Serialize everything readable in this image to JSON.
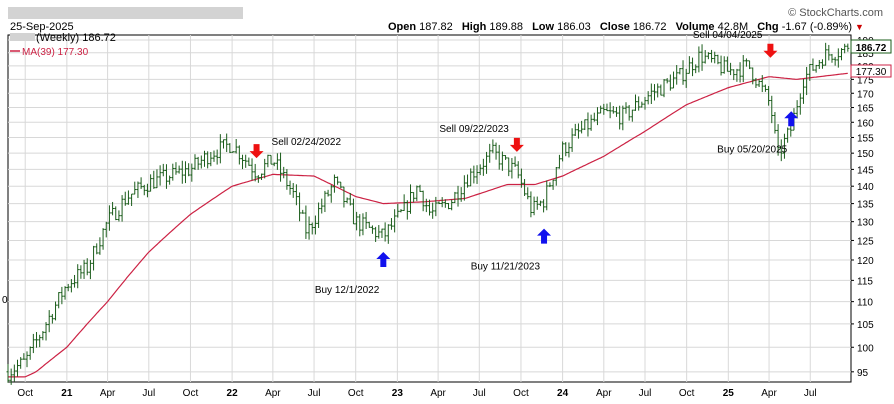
{
  "header": {
    "date": "25-Sep-2025",
    "watermark": "© StockCharts.com",
    "open_label": "Open",
    "open_value": "187.82",
    "high_label": "High",
    "high_value": "189.88",
    "low_label": "Low",
    "low_value": "186.03",
    "close_label": "Close",
    "close_value": "186.72",
    "volume_label": "Volume",
    "volume_value": "42.8M",
    "chg_label": "Chg",
    "chg_value": "-1.67 (-0.89%)",
    "chg_arrow": "▼"
  },
  "legend": {
    "price_label": "(Weekly) 186.72",
    "ma_label": "MA(39) 177.30"
  },
  "colors": {
    "price_bars": "#1a5c1a",
    "ma_line": "#cc2244",
    "sell_arrow": "#ee1111",
    "buy_arrow": "#1111ee",
    "grid": "#d8d8d8",
    "neg_change": "#cc0000",
    "header_redacted": "#d3d3d3"
  },
  "chart_data": {
    "type": "ohlc",
    "scale": "log",
    "ylim": [
      93,
      192
    ],
    "y_ticks": [
      "95",
      "100",
      "105",
      "110",
      "115",
      "120",
      "125",
      "130",
      "135",
      "140",
      "145",
      "150",
      "155",
      "160",
      "165",
      "170",
      "175",
      "180",
      "185",
      "190"
    ],
    "x_ticks": [
      "Oct",
      "21",
      "Apr",
      "Jul",
      "Oct",
      "22",
      "Apr",
      "Jul",
      "Oct",
      "23",
      "Apr",
      "Jul",
      "Oct",
      "24",
      "Apr",
      "Jul",
      "Oct",
      "25",
      "Apr",
      "Jul"
    ],
    "x_tick_dates": [
      "2020-10-01",
      "2021-01-01",
      "2021-04-01",
      "2021-07-01",
      "2021-10-01",
      "2022-01-01",
      "2022-04-01",
      "2022-07-01",
      "2022-10-01",
      "2023-01-01",
      "2023-04-01",
      "2023-07-01",
      "2023-10-01",
      "2024-01-01",
      "2024-04-01",
      "2024-07-01",
      "2024-10-01",
      "2025-01-01",
      "2025-04-01",
      "2025-07-01"
    ],
    "x_range": [
      "2020-08-24",
      "2025-09-29"
    ],
    "last_close": "186.72",
    "ma_last": "177.30",
    "left_edge_tick": "0",
    "price_anchors": [
      [
        "2020-08-24",
        95
      ],
      [
        "2020-10-01",
        97
      ],
      [
        "2020-11-05",
        103
      ],
      [
        "2020-12-01",
        108
      ],
      [
        "2021-01-01",
        114
      ],
      [
        "2021-02-15",
        118
      ],
      [
        "2021-04-01",
        130
      ],
      [
        "2021-05-15",
        137
      ],
      [
        "2021-07-01",
        141
      ],
      [
        "2021-08-15",
        143
      ],
      [
        "2021-10-01",
        145
      ],
      [
        "2021-11-15",
        150
      ],
      [
        "2021-12-31",
        153
      ],
      [
        "2022-02-24",
        144
      ],
      [
        "2022-04-01",
        148
      ],
      [
        "2022-05-15",
        138
      ],
      [
        "2022-06-15",
        127
      ],
      [
        "2022-08-15",
        141
      ],
      [
        "2022-10-01",
        130
      ],
      [
        "2022-12-01",
        126
      ],
      [
        "2023-01-15",
        133
      ],
      [
        "2023-02-15",
        140
      ],
      [
        "2023-03-15",
        132
      ],
      [
        "2023-05-01",
        136
      ],
      [
        "2023-06-01",
        142
      ],
      [
        "2023-07-31",
        150
      ],
      [
        "2023-09-22",
        144
      ],
      [
        "2023-10-25",
        133
      ],
      [
        "2023-11-21",
        136
      ],
      [
        "2023-12-31",
        151
      ],
      [
        "2024-02-01",
        156
      ],
      [
        "2024-04-01",
        163
      ],
      [
        "2024-05-15",
        162
      ],
      [
        "2024-07-15",
        170
      ],
      [
        "2024-09-15",
        176
      ],
      [
        "2024-10-31",
        184
      ],
      [
        "2024-12-31",
        178
      ],
      [
        "2025-02-15",
        180
      ],
      [
        "2025-04-04",
        166
      ],
      [
        "2025-04-20",
        149
      ],
      [
        "2025-05-20",
        158
      ],
      [
        "2025-06-15",
        175
      ],
      [
        "2025-07-31",
        184
      ],
      [
        "2025-09-25",
        186.72
      ]
    ],
    "ma_anchors": [
      [
        "2020-08-24",
        94
      ],
      [
        "2020-10-01",
        94
      ],
      [
        "2020-10-25",
        95
      ],
      [
        "2021-01-01",
        100
      ],
      [
        "2021-04-01",
        110
      ],
      [
        "2021-07-01",
        122
      ],
      [
        "2021-10-01",
        132
      ],
      [
        "2022-01-01",
        140
      ],
      [
        "2022-04-01",
        143.5
      ],
      [
        "2022-07-01",
        143
      ],
      [
        "2022-10-01",
        137
      ],
      [
        "2022-12-01",
        135
      ],
      [
        "2023-03-01",
        135.5
      ],
      [
        "2023-06-01",
        136.5
      ],
      [
        "2023-09-01",
        140.5
      ],
      [
        "2023-11-01",
        140.5
      ],
      [
        "2024-01-01",
        143
      ],
      [
        "2024-04-01",
        149
      ],
      [
        "2024-07-01",
        157
      ],
      [
        "2024-10-01",
        166
      ],
      [
        "2025-01-01",
        172
      ],
      [
        "2025-04-01",
        176
      ],
      [
        "2025-06-01",
        175
      ],
      [
        "2025-09-25",
        177.3
      ]
    ],
    "annotations": [
      {
        "type": "sell",
        "label": "Sell 02/24/2022",
        "date": "2022-02-24",
        "price": 150,
        "label_side": "right"
      },
      {
        "type": "buy",
        "label": "Buy 12/1/2022",
        "date": "2022-12-01",
        "price": 120,
        "label_side": "below-left"
      },
      {
        "type": "sell",
        "label": "Sell 09/22/2023",
        "date": "2023-09-22",
        "price": 152,
        "label_side": "left"
      },
      {
        "type": "buy",
        "label": "Buy 11/21/2023",
        "date": "2023-11-21",
        "price": 126,
        "label_side": "below-left"
      },
      {
        "type": "sell",
        "label": "Sell 04/04/2025",
        "date": "2025-04-04",
        "price": 185,
        "label_side": "left"
      },
      {
        "type": "buy",
        "label": "Buy 05/20/2025",
        "date": "2025-05-20",
        "price": 161,
        "label_side": "below-left"
      }
    ]
  }
}
